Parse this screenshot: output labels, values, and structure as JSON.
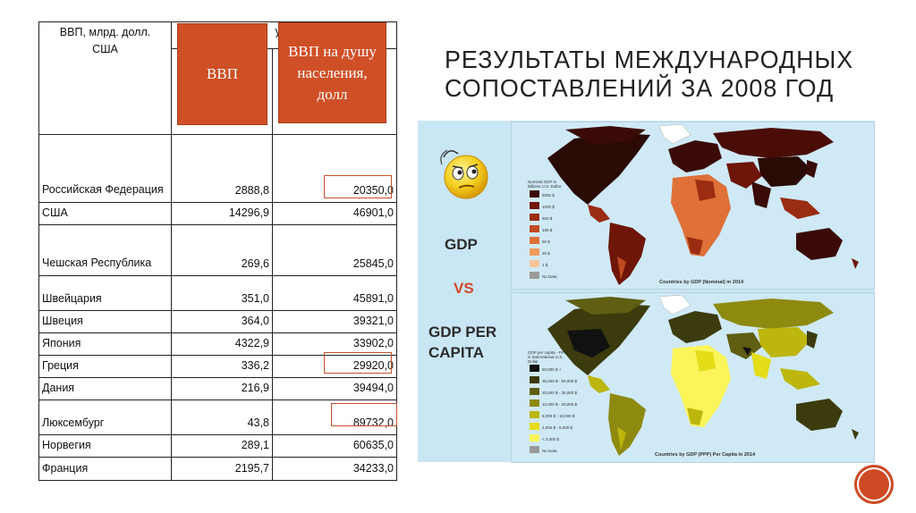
{
  "slide": {
    "title": "РЕЗУЛЬТАТЫ МЕЖДУНАРОДНЫХ СОПОСТАВЛЕНИЙ ЗА 2008 ГОД"
  },
  "table": {
    "header_unit": "ВВП, млрд. долл. США",
    "header_partial": "у ш",
    "overlay_gdp": "ВВП",
    "overlay_per_capita": "ВВП на душу населения, долл",
    "rows": [
      {
        "country": "Российская Федерация",
        "gdp": "2888,8",
        "per_capita": "20350,0"
      },
      {
        "country": "США",
        "gdp": "14296,9",
        "per_capita": "46901,0"
      },
      {
        "country": "Чешская Республика",
        "gdp": "269,6",
        "per_capita": "25845,0"
      },
      {
        "country": "Швейцария",
        "gdp": "351,0",
        "per_capita": "45891,0"
      },
      {
        "country": "Швеция",
        "gdp": "364,0",
        "per_capita": "39321,0"
      },
      {
        "country": "Япония",
        "gdp": "4322,9",
        "per_capita": "33902,0"
      },
      {
        "country": "Греция",
        "gdp": "336,2",
        "per_capita": "29920,0"
      },
      {
        "country": "Дания",
        "gdp": "216,9",
        "per_capita": "39494,0"
      },
      {
        "country": "Люксембург",
        "gdp": "43,8",
        "per_capita": "89732,0"
      },
      {
        "country": "Норвегия",
        "gdp": "289,1",
        "per_capita": "60635,0"
      },
      {
        "country": "Франция",
        "gdp": "2195,7",
        "per_capita": "34233,0"
      }
    ]
  },
  "maps": {
    "label_gdp": "GDP",
    "label_vs": "VS",
    "label_per_capita_1": "GDP PER",
    "label_per_capita_2": "CAPITA",
    "top_caption": "Countries by GDP (Nominal) in 2014",
    "bottom_caption": "Countries by GDP (PPP) Per Capita in 2014",
    "top_legend_title": "Nominal GDP in Billions U.S. Dollar",
    "bottom_legend_title": "GDP per capita - PPP in International U.S. Dollar",
    "top_legend": [
      {
        "label": "5000 $",
        "color": "#3a0b06"
      },
      {
        "label": "1000 $",
        "color": "#6e1608"
      },
      {
        "label": "500 $",
        "color": "#9a2c12"
      },
      {
        "label": "100 $",
        "color": "#c04a1f"
      },
      {
        "label": "50 $",
        "color": "#de7038"
      },
      {
        "label": "20 $",
        "color": "#ef9a5a"
      },
      {
        "label": "1 $",
        "color": "#f7c79a"
      },
      {
        "label": "No Data",
        "color": "#9a9a9a"
      }
    ],
    "bottom_legend": [
      {
        "label": "50,000 $ +",
        "color": "#111111"
      },
      {
        "label": "35,000 $ - 50,000 $",
        "color": "#3c3b0e"
      },
      {
        "label": "20,000 $ - 35,000 $",
        "color": "#5f5e12"
      },
      {
        "label": "10,000 $ - 20,000 $",
        "color": "#8e8a10"
      },
      {
        "label": "5,000 $ - 10,000 $",
        "color": "#bdb60c"
      },
      {
        "label": "2,000 $ - 5,000 $",
        "color": "#e4dd18"
      },
      {
        "label": "< 2,000 $",
        "color": "#fbf55a"
      },
      {
        "label": "No Data",
        "color": "#9a9a9a"
      }
    ]
  },
  "colors": {
    "accent": "#cf5027",
    "map_bg": "#c9e6f4",
    "ocean": "#cfe9f6"
  }
}
